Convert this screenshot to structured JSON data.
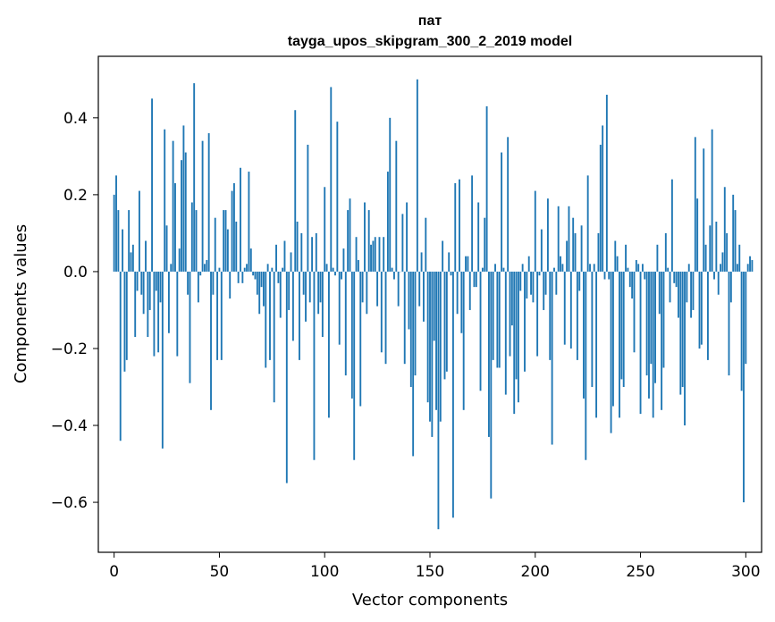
{
  "chart_data": {
    "type": "bar",
    "title": "пат",
    "subtitle": "tayga_upos_skipgram_300_2_2019 model",
    "xlabel": "Vector components",
    "ylabel": "Components values",
    "xlim": [
      -7.5,
      307.5
    ],
    "ylim": [
      -0.73,
      0.56
    ],
    "xticks": [
      0,
      50,
      100,
      150,
      200,
      250,
      300
    ],
    "xtick_labels": [
      "0",
      "50",
      "100",
      "150",
      "200",
      "250",
      "300"
    ],
    "yticks": [
      -0.6,
      -0.4,
      -0.2,
      0.0,
      0.2,
      0.4
    ],
    "ytick_labels": [
      "−0.6",
      "−0.4",
      "−0.2",
      "0.0",
      "0.2",
      "0.4"
    ],
    "grid": false,
    "color": "#1f77b4",
    "values": [
      0.2,
      0.25,
      0.16,
      -0.44,
      0.11,
      -0.26,
      -0.23,
      0.16,
      0.05,
      0.07,
      -0.17,
      -0.05,
      0.21,
      -0.06,
      -0.11,
      0.08,
      -0.17,
      -0.1,
      0.45,
      -0.22,
      -0.05,
      -0.21,
      -0.08,
      -0.46,
      0.37,
      0.12,
      -0.16,
      0.02,
      0.34,
      0.23,
      -0.22,
      0.06,
      0.29,
      0.38,
      0.31,
      -0.06,
      -0.29,
      0.18,
      0.49,
      0.16,
      -0.08,
      -0.01,
      0.34,
      0.02,
      0.03,
      0.36,
      -0.36,
      -0.06,
      0.14,
      -0.23,
      0.01,
      -0.23,
      0.16,
      0.16,
      0.11,
      -0.07,
      0.21,
      0.23,
      0.13,
      -0.03,
      0.27,
      -0.03,
      0.01,
      0.02,
      0.26,
      0.06,
      -0.01,
      -0.02,
      -0.06,
      -0.11,
      -0.04,
      -0.09,
      -0.25,
      0.02,
      -0.23,
      0.01,
      -0.34,
      0.07,
      -0.03,
      -0.12,
      0.01,
      0.08,
      -0.55,
      -0.1,
      0.05,
      -0.18,
      0.42,
      0.13,
      -0.23,
      0.1,
      -0.06,
      -0.13,
      0.33,
      -0.08,
      0.09,
      -0.49,
      0.1,
      -0.11,
      -0.08,
      -0.17,
      0.22,
      0.02,
      -0.38,
      0.48,
      0.01,
      -0.01,
      0.39,
      -0.19,
      -0.02,
      0.06,
      -0.27,
      0.16,
      0.19,
      -0.33,
      -0.49,
      0.09,
      0.03,
      -0.35,
      -0.08,
      0.18,
      -0.11,
      0.16,
      0.07,
      0.08,
      0.09,
      -0.09,
      0.09,
      -0.21,
      0.09,
      -0.24,
      0.26,
      0.4,
      0.01,
      -0.02,
      0.34,
      -0.09,
      0.0,
      0.15,
      -0.24,
      0.18,
      -0.15,
      -0.3,
      -0.48,
      -0.27,
      0.5,
      -0.09,
      0.05,
      -0.13,
      0.14,
      -0.34,
      -0.39,
      -0.43,
      -0.18,
      -0.36,
      -0.67,
      -0.39,
      0.08,
      -0.28,
      -0.26,
      0.05,
      -0.01,
      -0.64,
      0.23,
      -0.11,
      0.24,
      -0.16,
      -0.36,
      0.04,
      0.04,
      -0.1,
      0.25,
      -0.04,
      -0.04,
      0.18,
      -0.31,
      0.01,
      0.14,
      0.43,
      -0.43,
      -0.59,
      -0.23,
      0.02,
      -0.25,
      -0.25,
      0.31,
      0.01,
      -0.32,
      0.35,
      -0.22,
      -0.14,
      -0.37,
      -0.28,
      -0.34,
      -0.05,
      0.02,
      -0.26,
      -0.07,
      0.04,
      -0.06,
      -0.08,
      0.21,
      -0.22,
      -0.01,
      0.11,
      -0.1,
      -0.06,
      0.19,
      -0.23,
      -0.45,
      0.01,
      -0.06,
      0.17,
      0.04,
      0.02,
      -0.19,
      0.08,
      0.17,
      -0.2,
      0.14,
      0.1,
      -0.23,
      -0.05,
      0.12,
      -0.33,
      -0.49,
      0.25,
      0.02,
      -0.3,
      0.02,
      -0.38,
      0.1,
      0.33,
      0.38,
      -0.02,
      0.46,
      -0.02,
      -0.42,
      -0.35,
      0.08,
      0.04,
      -0.38,
      -0.28,
      -0.3,
      0.07,
      0.01,
      -0.04,
      -0.07,
      -0.21,
      0.03,
      0.02,
      -0.37,
      0.02,
      -0.02,
      -0.27,
      -0.33,
      -0.24,
      -0.38,
      -0.29,
      0.07,
      -0.11,
      -0.36,
      -0.25,
      0.1,
      0.01,
      -0.08,
      0.24,
      -0.03,
      -0.04,
      -0.12,
      -0.32,
      -0.3,
      -0.4,
      -0.08,
      0.02,
      -0.12,
      -0.1,
      0.35,
      0.19,
      -0.2,
      -0.19,
      0.32,
      0.07,
      -0.23,
      0.12,
      0.37,
      -0.02,
      0.13,
      -0.06,
      0.02,
      0.05,
      0.22,
      0.1,
      -0.27,
      -0.08,
      0.2,
      0.16,
      0.02,
      0.07,
      -0.31,
      -0.6,
      -0.24,
      0.02,
      0.04,
      0.03
    ]
  }
}
